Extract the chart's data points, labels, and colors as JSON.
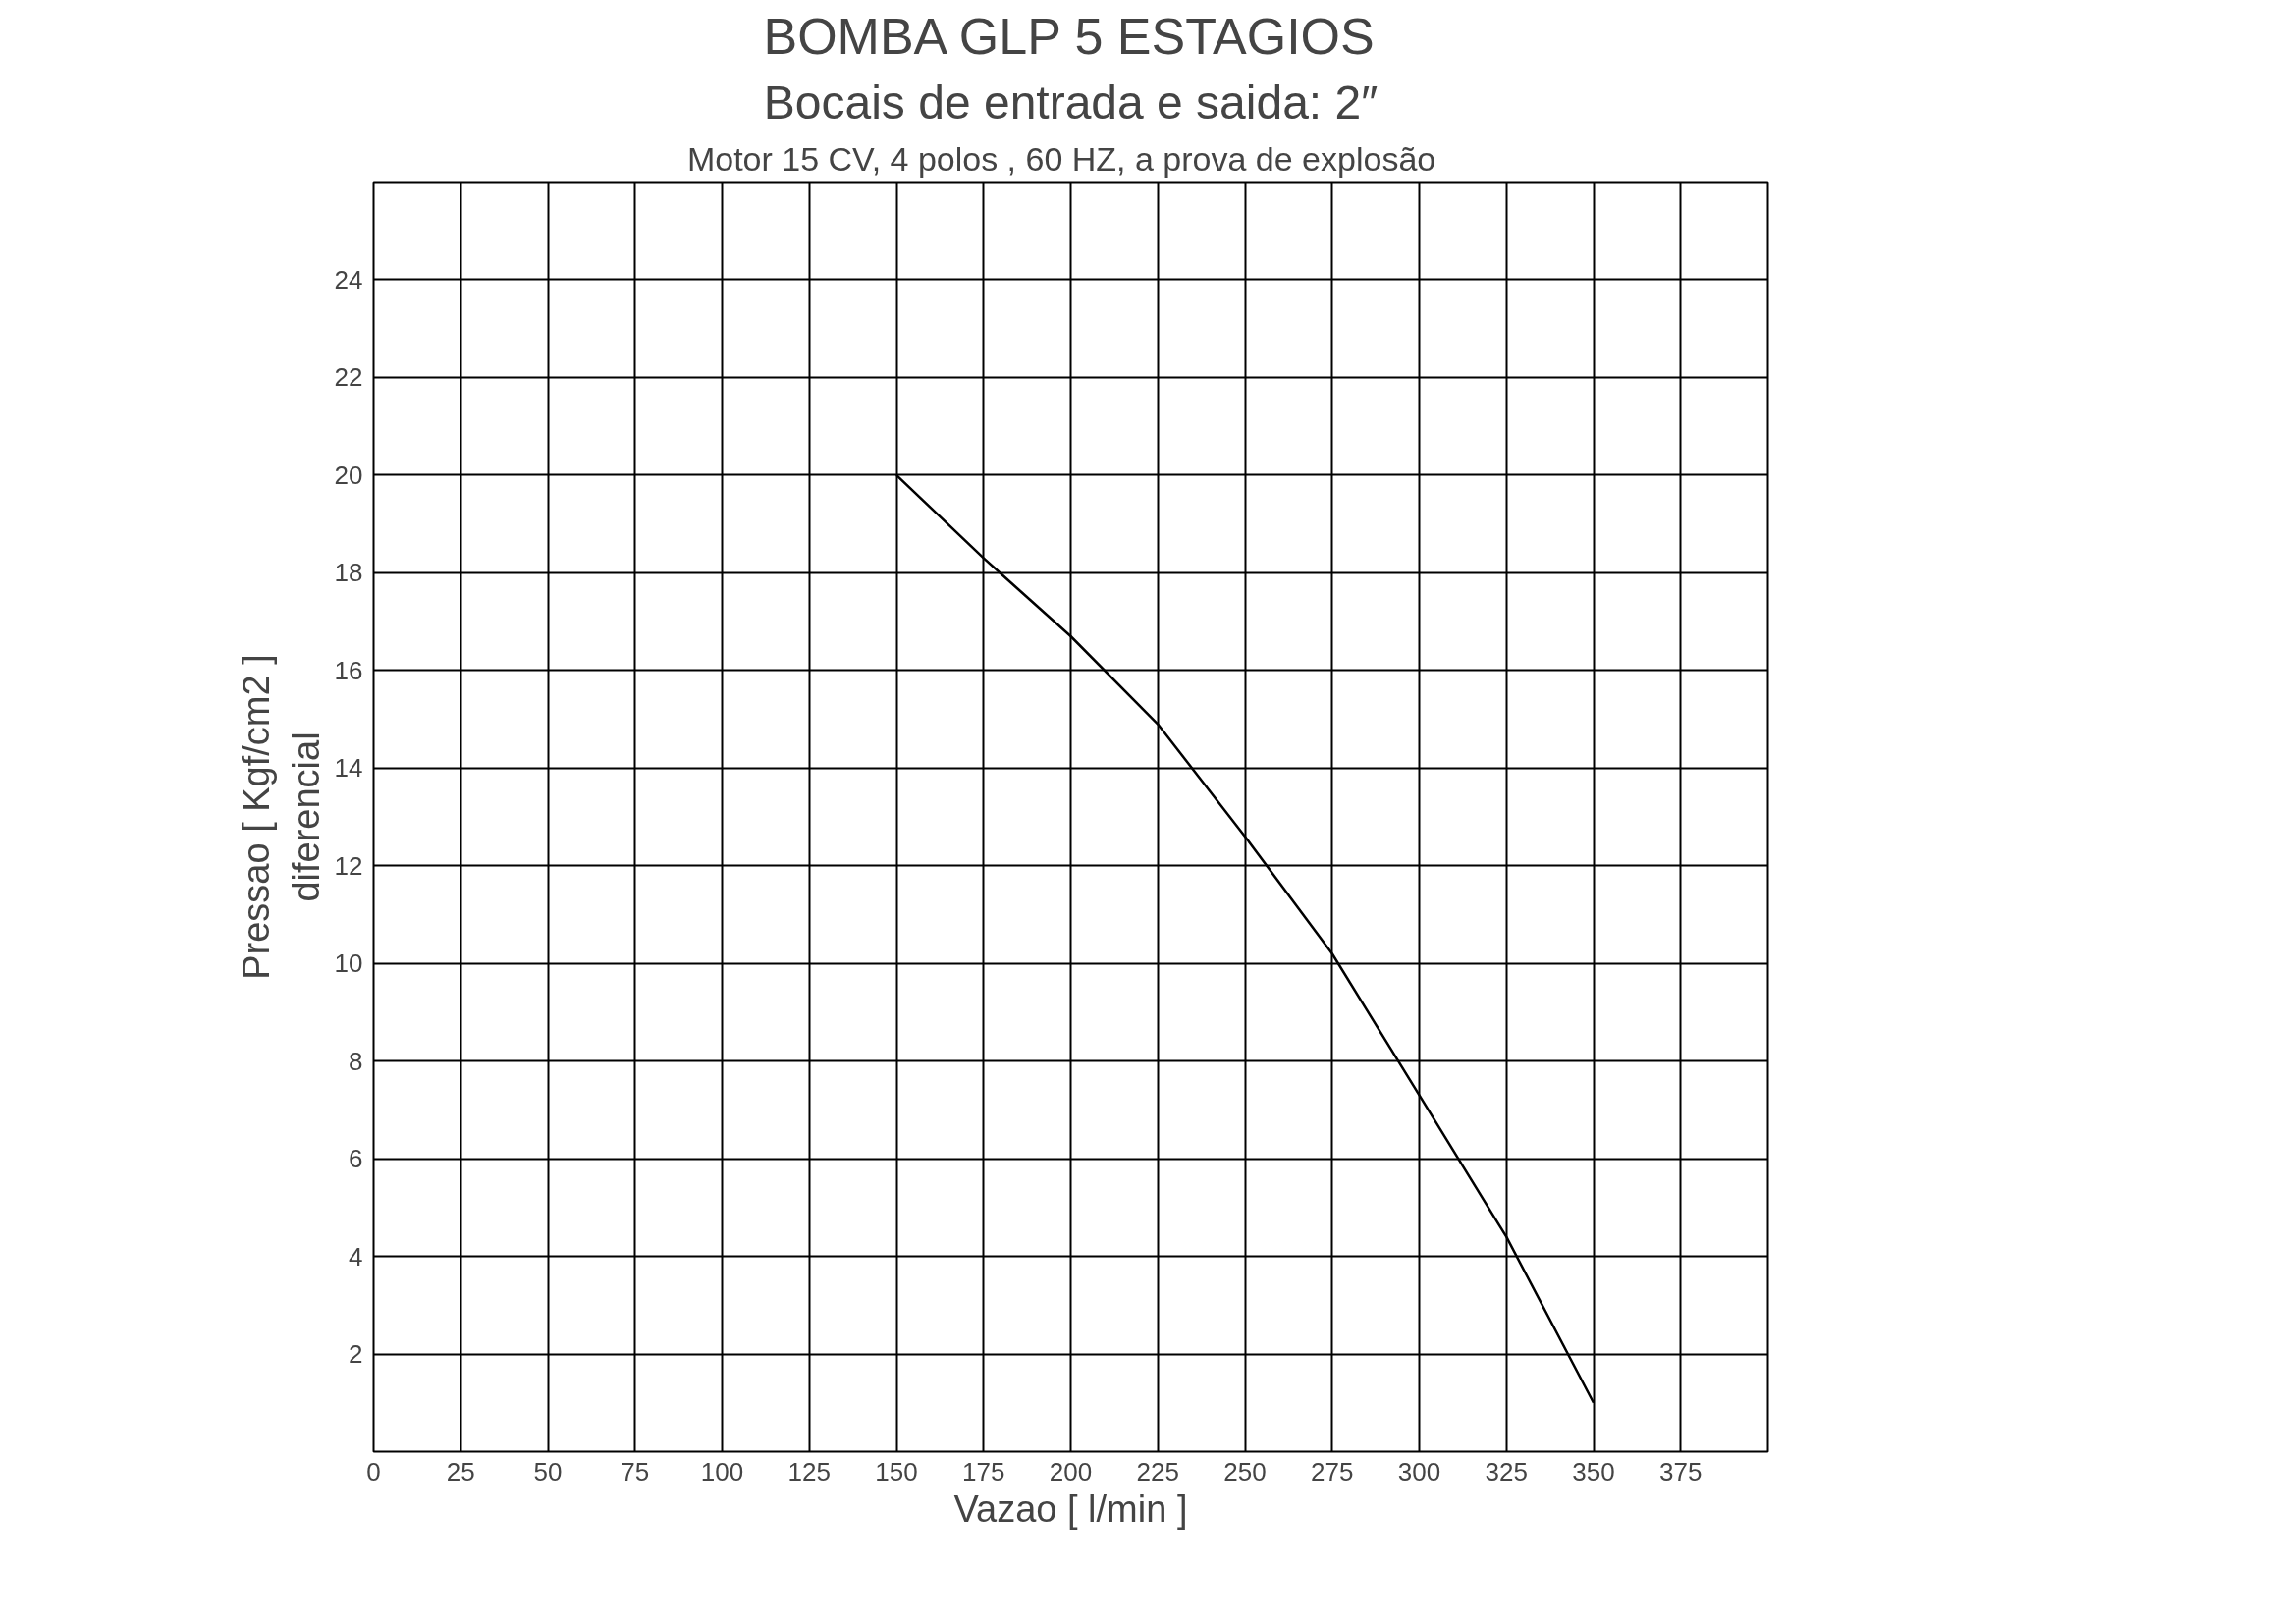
{
  "chart_data": {
    "type": "line",
    "title": "BOMBA GLP 5 ESTAGIOS",
    "subtitle": "Bocais de entrada e saida: 2″",
    "annotations": [
      "Motor  15 CV, 4 polos ,  60 HZ, a prova de explosão"
    ],
    "xlabel": "Vazao [ l/min ]",
    "ylabel": "Pressao [ Kgf/cm2 ]\ndiferencial",
    "x": [
      150,
      175,
      200,
      225,
      250,
      275,
      300,
      325,
      350
    ],
    "series": [
      {
        "color": "#000000",
        "values": [
          20,
          18.3,
          16.7,
          14.9,
          12.6,
          10.2,
          7.3,
          4.4,
          1.0
        ]
      }
    ],
    "xlim": [
      0,
      400
    ],
    "ylim": [
      0,
      26
    ],
    "xticks": [
      0,
      25,
      50,
      75,
      100,
      125,
      150,
      175,
      200,
      225,
      250,
      275,
      300,
      325,
      350,
      375,
      {
        "value": 400,
        "label": null
      }
    ],
    "yticks": [
      2,
      4,
      6,
      8,
      10,
      12,
      14,
      16,
      18,
      20,
      22,
      24,
      {
        "value": 26,
        "label": null
      }
    ],
    "grid": true,
    "marker": "none",
    "line_style": "solid"
  }
}
